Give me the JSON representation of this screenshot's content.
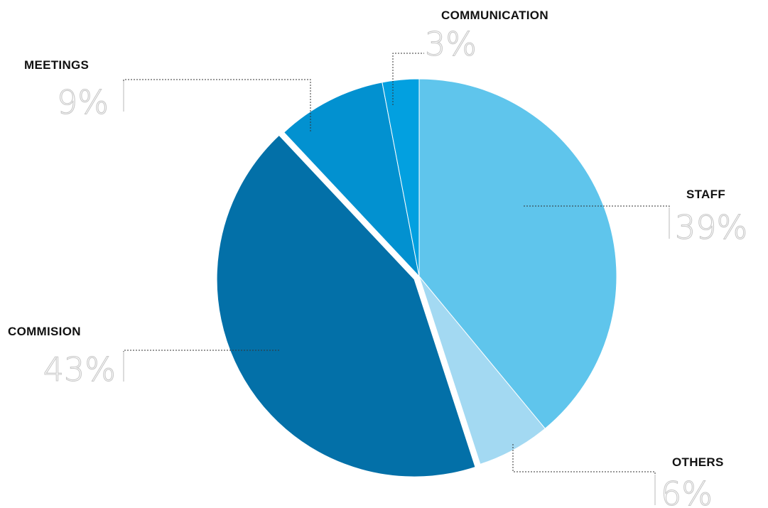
{
  "chart_data": {
    "type": "pie",
    "slices": [
      {
        "label": "STAFF",
        "value": 39,
        "value_label": "39%",
        "color": "#5fc5ec"
      },
      {
        "label": "OTHERS",
        "value": 6,
        "value_label": "6%",
        "color": "#a3d9f2"
      },
      {
        "label": "COMMISION",
        "value": 43,
        "value_label": "43%",
        "color": "#0370a8"
      },
      {
        "label": "MEETINGS",
        "value": 9,
        "value_label": "9%",
        "color": "#0291d0"
      },
      {
        "label": "COMMUNICATION",
        "value": 3,
        "value_label": "3%",
        "color": "#02a0e0"
      }
    ],
    "exploded": [
      "COMMISION"
    ],
    "legend": "none",
    "direction": "clockwise-from-top"
  }
}
